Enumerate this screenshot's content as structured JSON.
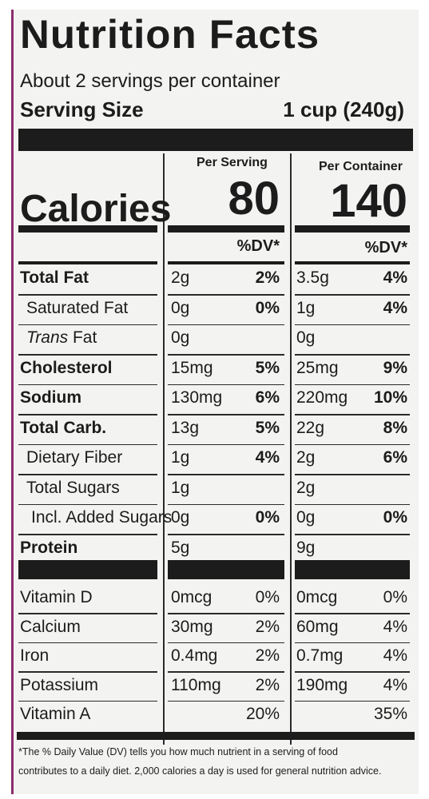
{
  "title": "Nutrition Facts",
  "servings_per_container": "About 2 servings per container",
  "serving_size_label": "Serving Size",
  "serving_size_value": "1 cup (240g)",
  "col_per_serving": "Per Serving",
  "col_per_container": "Per Container",
  "calories_label": "Calories",
  "calories_serving": "80",
  "calories_container": "140",
  "dv_header": "%DV*",
  "nutrients": [
    {
      "name": "Total Fat",
      "bold": true,
      "indent": 0,
      "s_amt": "2g",
      "s_dv": "2%",
      "c_amt": "3.5g",
      "c_dv": "4%"
    },
    {
      "name": "Saturated Fat",
      "bold": false,
      "indent": 1,
      "s_amt": "0g",
      "s_dv": "0%",
      "c_amt": "1g",
      "c_dv": "4%"
    },
    {
      "name_italic": "Trans",
      "name": " Fat",
      "bold": false,
      "indent": 1,
      "s_amt": "0g",
      "s_dv": "",
      "c_amt": "0g",
      "c_dv": ""
    },
    {
      "name": "Cholesterol",
      "bold": true,
      "indent": 0,
      "s_amt": "15mg",
      "s_dv": "5%",
      "c_amt": "25mg",
      "c_dv": "9%"
    },
    {
      "name": "Sodium",
      "bold": true,
      "indent": 0,
      "s_amt": "130mg",
      "s_dv": "6%",
      "c_amt": "220mg",
      "c_dv": "10%"
    },
    {
      "name": "Total Carb.",
      "bold": true,
      "indent": 0,
      "s_amt": "13g",
      "s_dv": "5%",
      "c_amt": "22g",
      "c_dv": "8%"
    },
    {
      "name": "Dietary Fiber",
      "bold": false,
      "indent": 1,
      "s_amt": "1g",
      "s_dv": "4%",
      "c_amt": "2g",
      "c_dv": "6%"
    },
    {
      "name": "Total Sugars",
      "bold": false,
      "indent": 1,
      "s_amt": "1g",
      "s_dv": "",
      "c_amt": "2g",
      "c_dv": ""
    },
    {
      "name": "Incl. Added Sugars",
      "bold": false,
      "indent": 2,
      "s_amt": "0g",
      "s_dv": "0%",
      "c_amt": "0g",
      "c_dv": "0%"
    },
    {
      "name": "Protein",
      "bold": true,
      "indent": 0,
      "s_amt": "5g",
      "s_dv": "",
      "c_amt": "9g",
      "c_dv": ""
    }
  ],
  "vitamins": [
    {
      "name": "Vitamin D",
      "s_amt": "0mcg",
      "s_dv": "0%",
      "c_amt": "0mcg",
      "c_dv": "0%"
    },
    {
      "name": "Calcium",
      "s_amt": "30mg",
      "s_dv": "2%",
      "c_amt": "60mg",
      "c_dv": "4%"
    },
    {
      "name": "Iron",
      "s_amt": "0.4mg",
      "s_dv": "2%",
      "c_amt": "0.7mg",
      "c_dv": "4%"
    },
    {
      "name": "Potassium",
      "s_amt": "110mg",
      "s_dv": "2%",
      "c_amt": "190mg",
      "c_dv": "4%"
    },
    {
      "name": "Vitamin A",
      "s_amt": "",
      "s_dv": "20%",
      "c_amt": "",
      "c_dv": "35%"
    }
  ],
  "footnote_line1": "*The % Daily Value (DV) tells you how much nutrient in a serving of food",
  "footnote_line2": "contributes to a daily diet. 2,000 calories a day is used for general nutrition advice."
}
